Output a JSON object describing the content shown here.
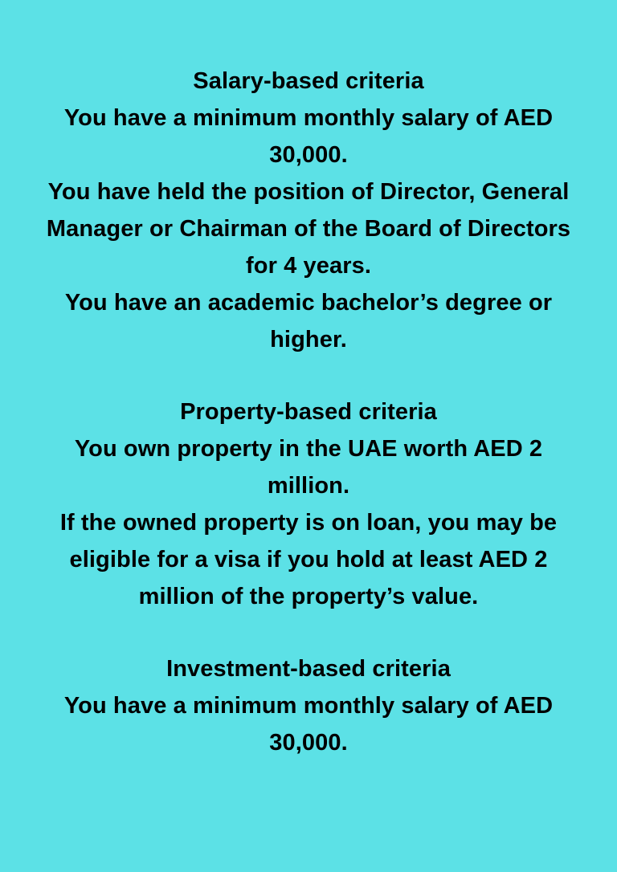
{
  "colors": {
    "background": "#5ce1e6",
    "text": "#000000"
  },
  "sections": [
    {
      "heading": "Salary-based criteria",
      "lines": [
        "You have a minimum monthly salary of AED",
        "30,000.",
        "You have held the position of Director, General",
        "Manager or Chairman of the Board of Directors",
        "for 4 years.",
        "You have an academic bachelor’s degree or",
        "higher."
      ]
    },
    {
      "heading": "Property-based criteria",
      "lines": [
        "You own property in the UAE worth AED 2",
        "million.",
        "If the owned property is on loan, you may be",
        "eligible for a visa if you hold at least AED 2",
        "million of the property’s value."
      ]
    },
    {
      "heading": "Investment-based criteria",
      "lines": [
        "You have a minimum monthly salary of AED",
        "30,000."
      ]
    }
  ]
}
